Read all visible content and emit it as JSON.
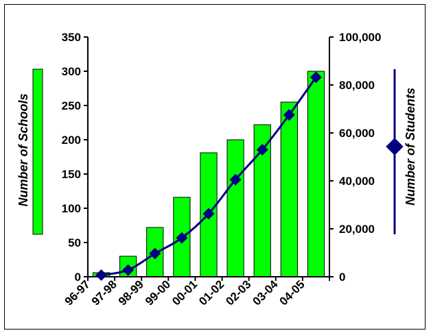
{
  "chart_data": {
    "type": "bar",
    "categories": [
      "96-97",
      "97-98",
      "98-99",
      "99-00",
      "00-01",
      "01-02",
      "02-03",
      "03-04",
      "04-05"
    ],
    "series": [
      {
        "name": "Number of Schools",
        "type": "bar",
        "axis": "left",
        "values": [
          6,
          30,
          72,
          116,
          181,
          200,
          222,
          255,
          300
        ]
      },
      {
        "name": "Number of Students",
        "type": "line",
        "axis": "right",
        "values": [
          700,
          2800,
          9700,
          16200,
          26300,
          40500,
          53000,
          67500,
          83200
        ]
      }
    ],
    "ylabel": "Number of Schools",
    "y2label": "Number of Students",
    "ylim": [
      0,
      350
    ],
    "y2lim": [
      0,
      100000
    ],
    "yticks": [
      "0",
      "50",
      "100",
      "150",
      "200",
      "250",
      "300",
      "350"
    ],
    "y2ticks": [
      "0",
      "20,000",
      "40,000",
      "60,000",
      "80,000",
      "100,000"
    ],
    "colors": {
      "bar": "#00ff00",
      "bar_edge": "#000000",
      "line": "#000080"
    },
    "grid": false,
    "legend": "left and right axis titles with series color keys"
  }
}
